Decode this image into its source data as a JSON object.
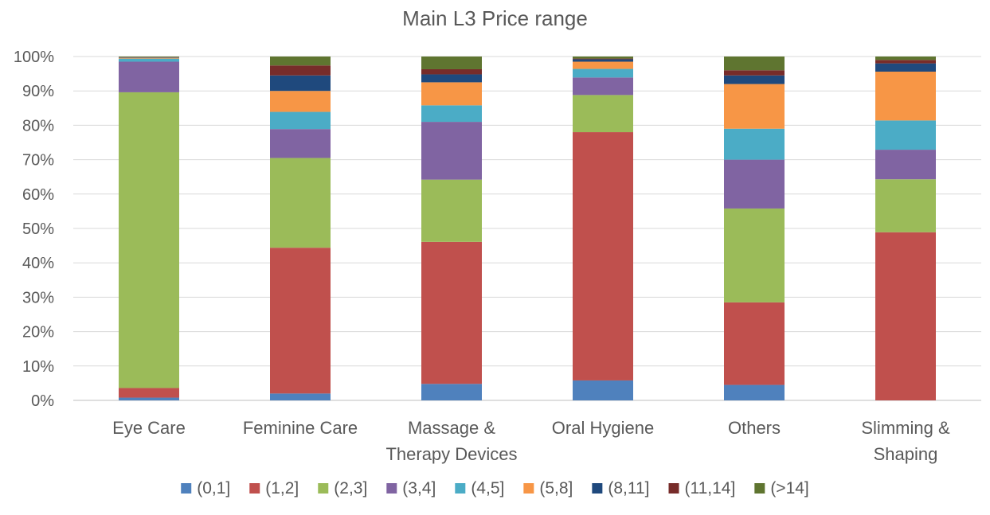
{
  "chart_data": {
    "type": "bar",
    "stacked": true,
    "percent": true,
    "title": "Main L3 Price range",
    "categories": [
      "Eye Care",
      "Feminine Care",
      "Massage & Therapy Devices",
      "Oral Hygiene",
      "Others",
      "Slimming & Shaping"
    ],
    "category_lines": [
      [
        "Eye Care"
      ],
      [
        "Feminine Care"
      ],
      [
        "Massage &",
        "Therapy Devices"
      ],
      [
        "Oral Hygiene"
      ],
      [
        "Others"
      ],
      [
        "Slimming &",
        "Shaping"
      ]
    ],
    "y_ticks": [
      "0%",
      "10%",
      "20%",
      "30%",
      "40%",
      "50%",
      "60%",
      "70%",
      "80%",
      "90%",
      "100%"
    ],
    "ylim": [
      0,
      100
    ],
    "grid": true,
    "legend_position": "bottom",
    "series": [
      {
        "name": "(0,1]",
        "color": "#4f81bd",
        "values": [
          0.8,
          2.0,
          4.8,
          5.8,
          4.5,
          0.0
        ]
      },
      {
        "name": "(1,2]",
        "color": "#c0504d",
        "values": [
          2.8,
          42.4,
          41.3,
          72.2,
          24.0,
          48.9
        ]
      },
      {
        "name": "(2,3]",
        "color": "#9bbb59",
        "values": [
          86.0,
          26.1,
          18.1,
          10.8,
          27.3,
          15.4
        ]
      },
      {
        "name": "(3,4]",
        "color": "#8064a2",
        "values": [
          8.9,
          8.4,
          16.8,
          5.1,
          14.2,
          8.6
        ]
      },
      {
        "name": "(4,5]",
        "color": "#4bacc6",
        "values": [
          0.9,
          5.0,
          4.8,
          2.5,
          9.0,
          8.5
        ]
      },
      {
        "name": "(5,8]",
        "color": "#f79646",
        "values": [
          0.2,
          6.1,
          6.7,
          2.1,
          13.0,
          14.2
        ]
      },
      {
        "name": "(8,11]",
        "color": "#1f497d",
        "values": [
          0.1,
          4.5,
          2.3,
          0.7,
          2.5,
          2.4
        ]
      },
      {
        "name": "(11,14]",
        "color": "#772c2a",
        "values": [
          0.1,
          2.9,
          1.5,
          0.2,
          1.5,
          1.0
        ]
      },
      {
        "name": "(>14]",
        "color": "#5f7530",
        "values": [
          0.2,
          2.6,
          3.7,
          0.6,
          4.0,
          1.0
        ]
      }
    ]
  }
}
